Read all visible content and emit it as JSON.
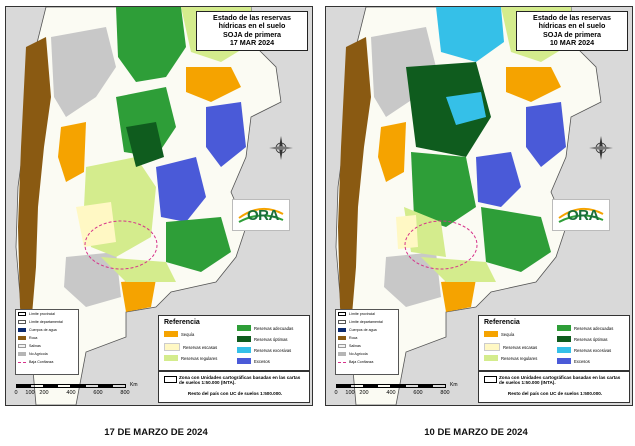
{
  "maps": [
    {
      "title": [
        "Estado de las reservas",
        "hídricas en el suelo",
        "SOJA de primera",
        "17 MAR 2024"
      ],
      "caption": "17 DE MARZO DE 2024",
      "variant": "march17"
    },
    {
      "title": [
        "Estado de las reservas",
        "hídricas en el suelo",
        "SOJA de primera",
        "10 MAR 2024"
      ],
      "caption": "10 DE MARZO DE 2024",
      "variant": "march10"
    }
  ],
  "basic_legend": [
    {
      "label": "Límite provincial",
      "color": "#ffffff",
      "style": "line-thick"
    },
    {
      "label": "Límite departamental",
      "color": "#ffffff",
      "style": "line-thin"
    },
    {
      "label": "Cuerpos de agua",
      "color": "#0b2a6e",
      "style": "fill"
    },
    {
      "label": "Roca",
      "color": "#8a5a12",
      "style": "fill"
    },
    {
      "label": "Salinas",
      "color": "#f2f2f2",
      "style": "fill"
    },
    {
      "label": "No Agrícola",
      "color": "#b5b5b5",
      "style": "fill"
    },
    {
      "label": "Baja Confianza",
      "color": "#d6338a",
      "style": "dashed"
    }
  ],
  "reference": {
    "title": "Referencia",
    "items": [
      {
        "label": "Sequía",
        "color": "#f5a300"
      },
      {
        "label": "Reservas escasas",
        "color": "#fff8c4"
      },
      {
        "label": "Reservas regulares",
        "color": "#d4ec8d"
      },
      {
        "label": "Reservas adecuadas",
        "color": "#2e9e38"
      },
      {
        "label": "Reservas óptimas",
        "color": "#0f5c1e"
      },
      {
        "label": "Reservas excesivas",
        "color": "#35c0e8"
      },
      {
        "label": "Excesos",
        "color": "#4a5ad8"
      }
    ]
  },
  "note": {
    "line1": "Zona con Unidades cartográficas basadas en las cartas de suelos 1:50.000 (INTA).",
    "line2": "Resto del país con UC de suelos 1:500.000."
  },
  "scale": {
    "unit": "Km",
    "ticks": [
      "0",
      "100",
      "200",
      "400",
      "600",
      "800"
    ]
  },
  "logo_text": "ORA"
}
